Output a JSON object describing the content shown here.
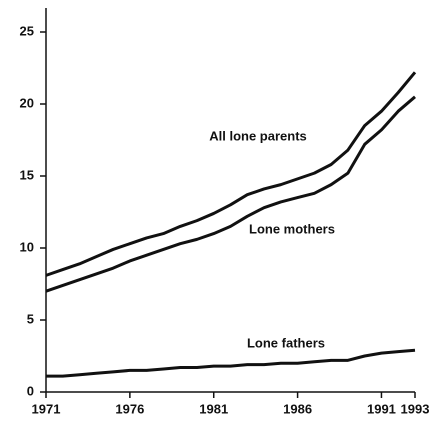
{
  "chart_data": {
    "type": "line",
    "x": [
      1971,
      1972,
      1973,
      1974,
      1975,
      1976,
      1977,
      1978,
      1979,
      1980,
      1981,
      1982,
      1983,
      1984,
      1985,
      1986,
      1987,
      1988,
      1989,
      1990,
      1991,
      1992,
      1993
    ],
    "series": [
      {
        "name": "All lone parents",
        "color": "#111111",
        "values": [
          8.1,
          8.5,
          8.9,
          9.4,
          9.9,
          10.3,
          10.7,
          11.0,
          11.5,
          11.9,
          12.4,
          13.0,
          13.7,
          14.1,
          14.4,
          14.8,
          15.2,
          15.8,
          16.8,
          18.5,
          19.5,
          20.8,
          22.2
        ]
      },
      {
        "name": "Lone mothers",
        "color": "#111111",
        "values": [
          7.0,
          7.4,
          7.8,
          8.2,
          8.6,
          9.1,
          9.5,
          9.9,
          10.3,
          10.6,
          11.0,
          11.5,
          12.2,
          12.8,
          13.2,
          13.5,
          13.8,
          14.4,
          15.2,
          17.2,
          18.2,
          19.5,
          20.5
        ]
      },
      {
        "name": "Lone fathers",
        "color": "#111111",
        "values": [
          1.1,
          1.1,
          1.2,
          1.3,
          1.4,
          1.5,
          1.5,
          1.6,
          1.7,
          1.7,
          1.8,
          1.8,
          1.9,
          1.9,
          2.0,
          2.0,
          2.1,
          2.2,
          2.2,
          2.5,
          2.7,
          2.8,
          2.9
        ]
      }
    ],
    "xlim": [
      1971,
      1993
    ],
    "xticks": [
      1971,
      1976,
      1981,
      1986,
      1991,
      1993
    ],
    "ylim": [
      0,
      25
    ],
    "yticks": [
      0,
      5,
      10,
      15,
      20,
      25
    ]
  }
}
